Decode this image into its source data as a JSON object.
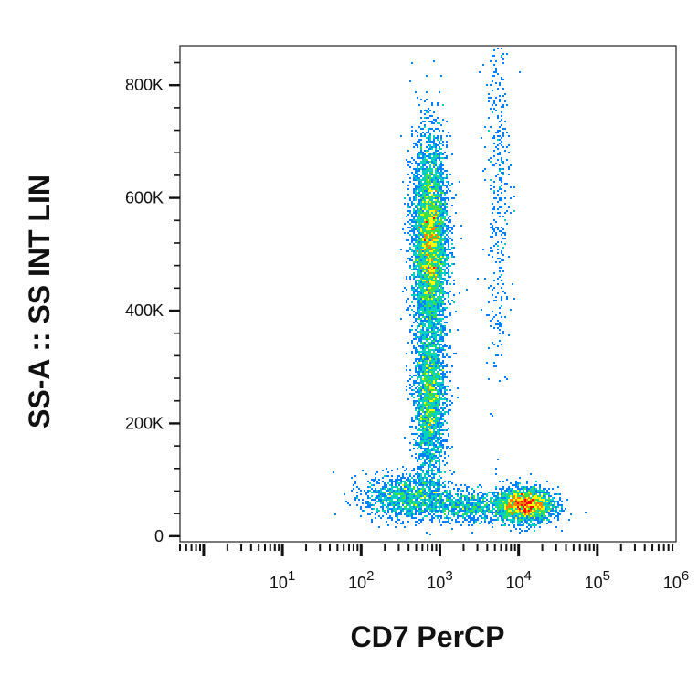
{
  "chart_data": {
    "type": "scatter",
    "title": "",
    "xlabel": "CD7 PerCP",
    "ylabel": "SS-A :: SS INT LIN",
    "x_scale": "log",
    "xlim": [
      0.5,
      1000000
    ],
    "ylim": [
      -10000,
      870000
    ],
    "x_ticks": [
      {
        "value": 10,
        "base": "10",
        "exp": "1"
      },
      {
        "value": 100,
        "base": "10",
        "exp": "2"
      },
      {
        "value": 1000,
        "base": "10",
        "exp": "3"
      },
      {
        "value": 10000,
        "base": "10",
        "exp": "4"
      },
      {
        "value": 100000,
        "base": "10",
        "exp": "5"
      },
      {
        "value": 1000000,
        "base": "10",
        "exp": "6"
      }
    ],
    "y_ticks": [
      {
        "value": 0,
        "label": "0"
      },
      {
        "value": 200000,
        "label": "200K"
      },
      {
        "value": 400000,
        "label": "400K"
      },
      {
        "value": 600000,
        "label": "600K"
      },
      {
        "value": 800000,
        "label": "800K"
      }
    ],
    "grid": false,
    "legend": "none",
    "density_colormap": [
      "#0000cc",
      "#0080ff",
      "#00d0c0",
      "#40e040",
      "#ffff00",
      "#ff8000",
      "#ff0000"
    ],
    "populations": [
      {
        "x_center": 750,
        "y_center": 520000,
        "x_spread_log": 0.11,
        "y_spread": 90000,
        "count": 5200
      },
      {
        "x_center": 750,
        "y_center": 240000,
        "x_spread_log": 0.1,
        "y_spread": 70000,
        "count": 2400
      },
      {
        "x_center": 400,
        "y_center": 70000,
        "x_spread_log": 0.28,
        "y_spread": 20000,
        "count": 1300
      },
      {
        "x_center": 12000,
        "y_center": 55000,
        "x_spread_log": 0.18,
        "y_spread": 15000,
        "count": 2400
      },
      {
        "x_center": 2500,
        "y_center": 52000,
        "x_spread_log": 0.3,
        "y_spread": 14000,
        "count": 800
      },
      {
        "x_center": 5500,
        "y_center": 620000,
        "x_spread_log": 0.08,
        "y_spread": 170000,
        "count": 380
      }
    ]
  }
}
